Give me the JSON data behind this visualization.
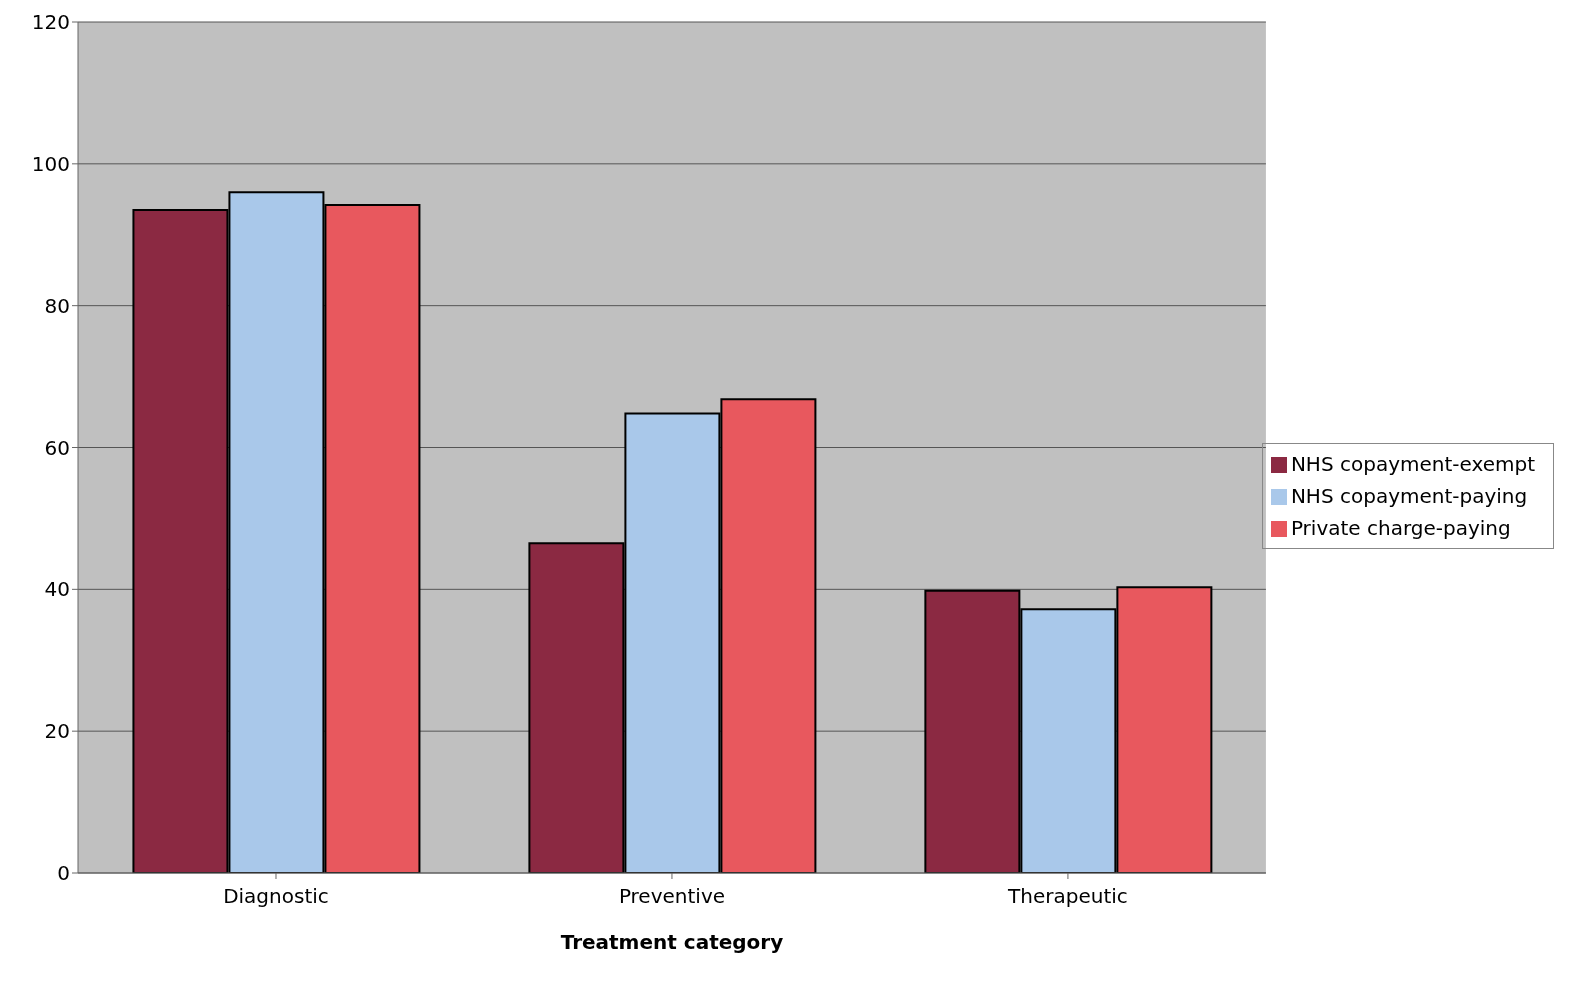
{
  "chart_data": {
    "type": "bar",
    "xlabel": "Treatment category",
    "categories": [
      "Diagnostic",
      "Preventive",
      "Therapeutic"
    ],
    "series": [
      {
        "name": "NHS copayment-exempt",
        "color": "#8b2942",
        "values": [
          93.5,
          46.5,
          39.8
        ]
      },
      {
        "name": "NHS copayment-paying",
        "color": "#a9c8ea",
        "values": [
          96,
          64.8,
          37.2
        ]
      },
      {
        "name": "Private charge-paying",
        "color": "#e8585e",
        "values": [
          94.2,
          66.8,
          40.3
        ]
      }
    ],
    "ylim": [
      0,
      120
    ],
    "yticks": [
      0,
      20,
      40,
      60,
      80,
      100,
      120
    ],
    "grid": "y",
    "legend": "right"
  }
}
